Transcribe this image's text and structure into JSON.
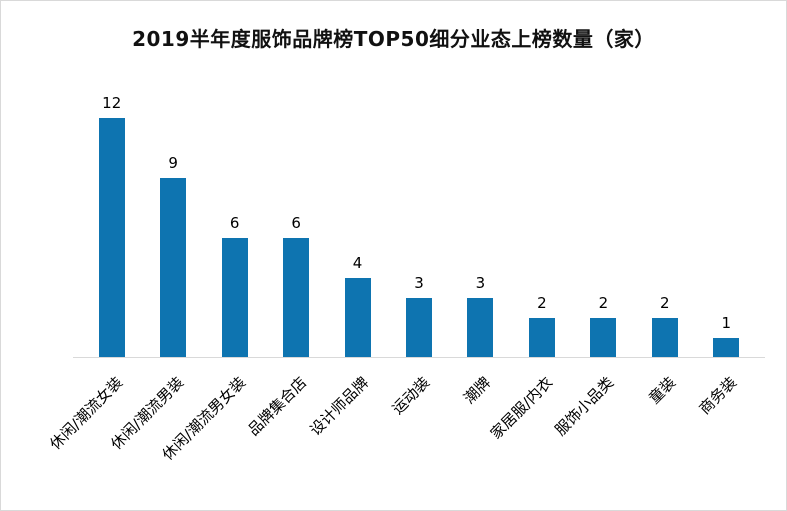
{
  "chart_data": {
    "type": "bar",
    "title": "2019半年度服饰品牌榜TOP50细分业态上榜数量（家）",
    "categories": [
      "休闲/潮流女装",
      "休闲/潮流男装",
      "休闲/潮流男女装",
      "品牌集合店",
      "设计师品牌",
      "运动装",
      "潮牌",
      "家居服/内衣",
      "服饰小品类",
      "童装",
      "商务装"
    ],
    "values": [
      12,
      9,
      6,
      6,
      4,
      3,
      3,
      2,
      2,
      2,
      1
    ],
    "xlabel": "",
    "ylabel": "",
    "ylim": [
      0,
      12
    ],
    "grid": false,
    "legend": "none",
    "data_labels": true,
    "x_tick_rotation": 45,
    "bar_color": "#0e74b0",
    "axis_line_color": "#d9d9d9",
    "background_color": "#ffffff"
  }
}
